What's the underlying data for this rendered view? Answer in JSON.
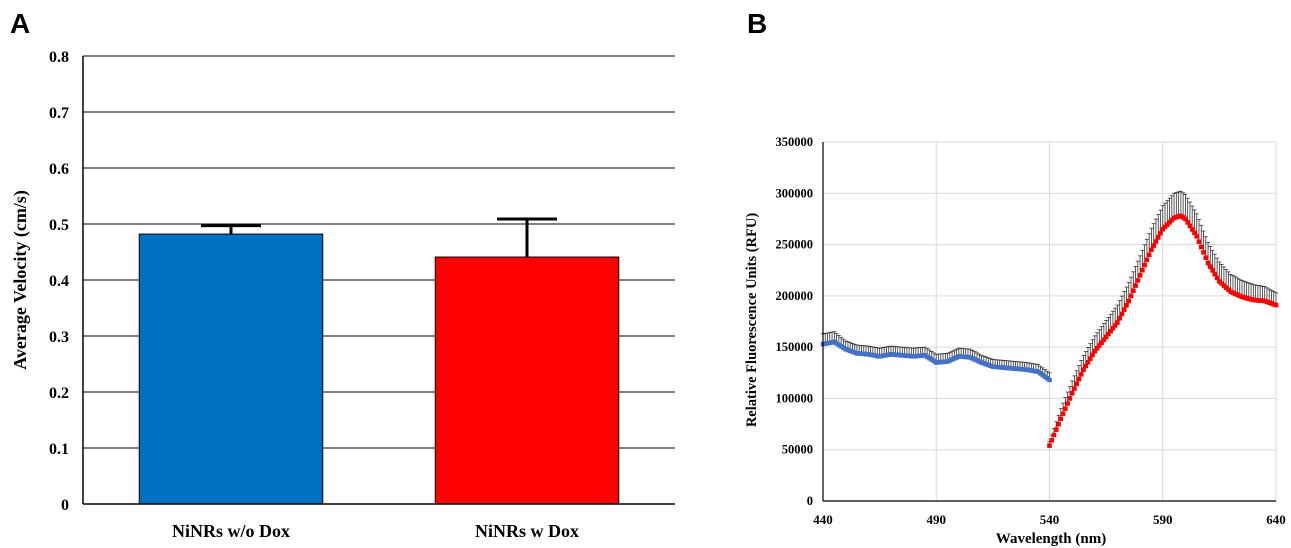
{
  "panels": {
    "a_label": "A",
    "b_label": "B"
  },
  "chart_data": [
    {
      "type": "bar",
      "panel": "A",
      "categories": [
        "NiNRs w/o Dox",
        "NiNRs w Dox"
      ],
      "values": [
        0.482,
        0.441
      ],
      "errors": [
        0.015,
        0.068
      ],
      "colors": [
        "#0070c0",
        "#ff0000"
      ],
      "ylabel": "Average Velocity (cm/s)",
      "xlabel": "",
      "ylim": [
        0,
        0.8
      ],
      "yticks": [
        "0",
        "0.1",
        "0.2",
        "0.3",
        "0.4",
        "0.5",
        "0.6",
        "0.7",
        "0.8"
      ],
      "grid": true
    },
    {
      "type": "scatter",
      "panel": "B",
      "xlabel": "Wavelength (nm)",
      "ylabel": "Relative Fluorescence Units (RFU)",
      "xlim": [
        440,
        640
      ],
      "ylim": [
        0,
        350000
      ],
      "xticks": [
        "440",
        "490",
        "540",
        "590",
        "640"
      ],
      "yticks": [
        "0",
        "50000",
        "100000",
        "150000",
        "200000",
        "250000",
        "300000",
        "350000"
      ],
      "grid": true,
      "series": [
        {
          "color": "#4472c4",
          "x": [
            440,
            445,
            450,
            455,
            460,
            465,
            470,
            475,
            480,
            485,
            490,
            495,
            500,
            505,
            510,
            515,
            520,
            525,
            530,
            535,
            540
          ],
          "y": [
            153000,
            155000,
            148000,
            144000,
            143000,
            141000,
            143000,
            142000,
            141000,
            142000,
            135000,
            136000,
            141000,
            140000,
            135000,
            131000,
            130000,
            129000,
            128000,
            126000,
            118000
          ],
          "errors": [
            10000,
            10000,
            8000,
            8000,
            8000,
            8000,
            8000,
            8000,
            8000,
            8000,
            8000,
            8000,
            8000,
            8000,
            7000,
            7000,
            7000,
            7000,
            7000,
            7000,
            7000
          ]
        },
        {
          "color": "#ff0000",
          "x": [
            540,
            545,
            550,
            555,
            560,
            565,
            570,
            575,
            580,
            585,
            590,
            595,
            598,
            600,
            605,
            610,
            615,
            620,
            625,
            630,
            635,
            640
          ],
          "y": [
            54000,
            80000,
            105000,
            128000,
            146000,
            160000,
            174000,
            195000,
            220000,
            245000,
            265000,
            276000,
            278000,
            275000,
            258000,
            232000,
            214000,
            204000,
            199000,
            196000,
            195000,
            191000
          ],
          "errors": [
            4000,
            10000,
            12000,
            14000,
            15000,
            16000,
            17000,
            18000,
            19000,
            21000,
            23000,
            24000,
            24000,
            24000,
            22000,
            20000,
            19000,
            17000,
            16000,
            15000,
            14000,
            12000
          ]
        }
      ]
    }
  ]
}
